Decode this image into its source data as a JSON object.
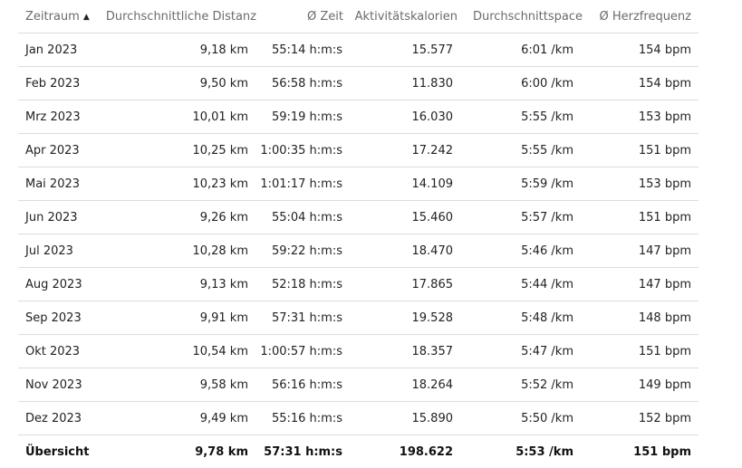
{
  "table": {
    "headers": [
      "Zeitraum",
      "Durchschnittliche Distanz",
      "Ø Zeit",
      "Aktivitätskalorien",
      "Durchschnittspace",
      "Ø Herzfrequenz"
    ],
    "sort": {
      "column": "Zeitraum",
      "direction": "ascending",
      "icon": "triangle-up-icon",
      "glyph": "▲"
    },
    "rows": [
      [
        "Jan 2023",
        "9,18 km",
        "55:14 h:m:s",
        "15.577",
        "6:01 /km",
        "154 bpm"
      ],
      [
        "Feb 2023",
        "9,50 km",
        "56:58 h:m:s",
        "11.830",
        "6:00 /km",
        "154 bpm"
      ],
      [
        "Mrz 2023",
        "10,01 km",
        "59:19 h:m:s",
        "16.030",
        "5:55 /km",
        "153 bpm"
      ],
      [
        "Apr 2023",
        "10,25 km",
        "1:00:35 h:m:s",
        "17.242",
        "5:55 /km",
        "151 bpm"
      ],
      [
        "Mai 2023",
        "10,23 km",
        "1:01:17 h:m:s",
        "14.109",
        "5:59 /km",
        "153 bpm"
      ],
      [
        "Jun 2023",
        "9,26 km",
        "55:04 h:m:s",
        "15.460",
        "5:57 /km",
        "151 bpm"
      ],
      [
        "Jul 2023",
        "10,28 km",
        "59:22 h:m:s",
        "18.470",
        "5:46 /km",
        "147 bpm"
      ],
      [
        "Aug 2023",
        "9,13 km",
        "52:18 h:m:s",
        "17.865",
        "5:44 /km",
        "147 bpm"
      ],
      [
        "Sep 2023",
        "9,91 km",
        "57:31 h:m:s",
        "19.528",
        "5:48 /km",
        "148 bpm"
      ],
      [
        "Okt 2023",
        "10,54 km",
        "1:00:57 h:m:s",
        "18.357",
        "5:47 /km",
        "151 bpm"
      ],
      [
        "Nov 2023",
        "9,58 km",
        "56:16 h:m:s",
        "18.264",
        "5:52 /km",
        "149 bpm"
      ],
      [
        "Dez 2023",
        "9,49 km",
        "55:16 h:m:s",
        "15.890",
        "5:50 /km",
        "152 bpm"
      ]
    ],
    "total": [
      "Übersicht",
      "9,78 km",
      "57:31 h:m:s",
      "198.622",
      "5:53 /km",
      "151 bpm"
    ]
  }
}
